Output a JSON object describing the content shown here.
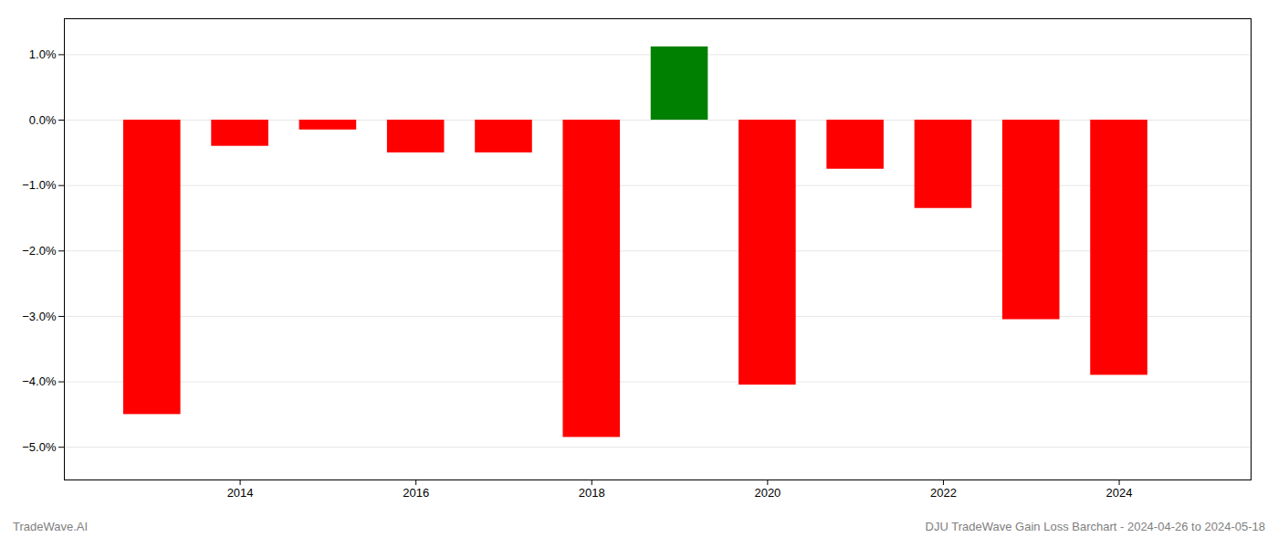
{
  "chart_data": {
    "type": "bar",
    "x": [
      2013,
      2014,
      2015,
      2016,
      2017,
      2018,
      2019,
      2020,
      2021,
      2022,
      2023,
      2024
    ],
    "values": [
      -4.5,
      -0.4,
      -0.15,
      -0.5,
      -0.5,
      -4.85,
      1.12,
      -4.05,
      -0.75,
      -1.35,
      -3.05,
      -3.9
    ],
    "colors": [
      "#ff0000",
      "#ff0000",
      "#ff0000",
      "#ff0000",
      "#ff0000",
      "#ff0000",
      "#008000",
      "#ff0000",
      "#ff0000",
      "#ff0000",
      "#ff0000",
      "#ff0000"
    ],
    "xlim": [
      2012.0,
      2025.5
    ],
    "xticks": [
      2014,
      2016,
      2018,
      2020,
      2022,
      2024
    ],
    "ylim": [
      -5.5,
      1.55
    ],
    "yticks": [
      {
        "value": -5.0,
        "label": "−5.0%"
      },
      {
        "value": -4.0,
        "label": "−4.0%"
      },
      {
        "value": -3.0,
        "label": "−3.0%"
      },
      {
        "value": -2.0,
        "label": "−2.0%"
      },
      {
        "value": -1.0,
        "label": "−1.0%"
      },
      {
        "value": 0.0,
        "label": "0.0%"
      },
      {
        "value": 1.0,
        "label": "1.0%"
      }
    ],
    "grid": true,
    "annotations": [
      "TradeWave.AI",
      "DJU TradeWave Gain Loss Barchart - 2024-04-26 to 2024-05-18"
    ]
  }
}
